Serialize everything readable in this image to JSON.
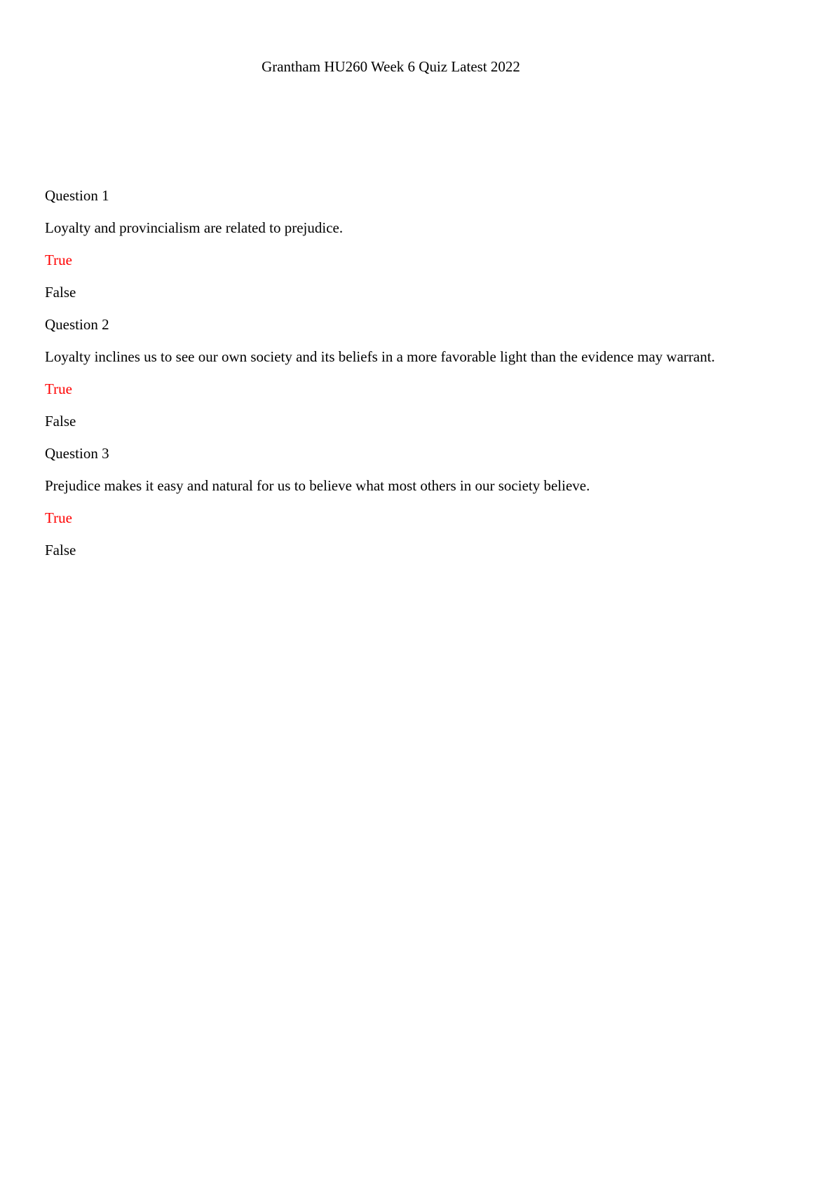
{
  "page": {
    "title": "Grantham HU260 Week 6 Quiz Latest 2022",
    "colors": {
      "background": "#ffffff",
      "text": "#000000",
      "highlighted_answer": "#ff0000"
    }
  },
  "quiz": {
    "questions": [
      {
        "label": "Question 1",
        "text": "Loyalty and provincialism are related to prejudice.",
        "options": [
          {
            "label": "True",
            "highlighted": true
          },
          {
            "label": "False",
            "highlighted": false
          }
        ]
      },
      {
        "label": "Question 2",
        "text": "Loyalty inclines us to see our own society and its beliefs in a more favorable light than the evidence may warrant.",
        "options": [
          {
            "label": "True",
            "highlighted": true
          },
          {
            "label": "False",
            "highlighted": false
          }
        ]
      },
      {
        "label": "Question 3",
        "text": "Prejudice makes it easy and natural for us to believe what most others in our society believe.",
        "options": [
          {
            "label": "True",
            "highlighted": true
          },
          {
            "label": "False",
            "highlighted": false
          }
        ]
      }
    ]
  }
}
